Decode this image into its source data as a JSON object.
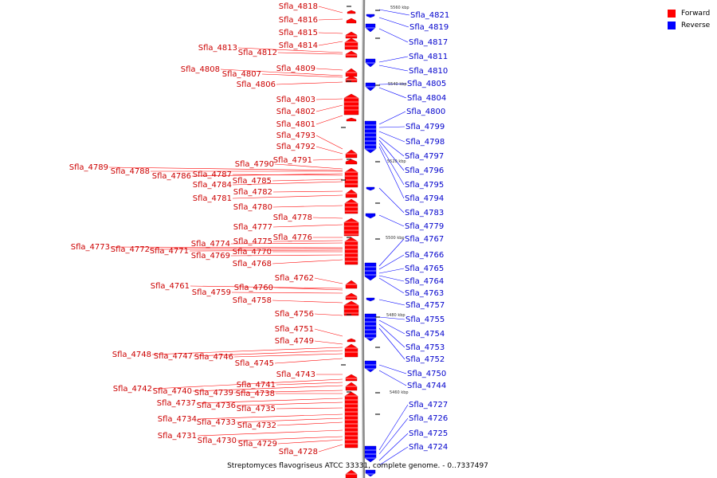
{
  "caption": "Streptomyces flavogriseus ATCC 33331, complete genome. - 0..7337497",
  "legend": [
    {
      "label": "Forward",
      "color": "#ff0000"
    },
    {
      "label": "Reverse",
      "color": "#0000ff"
    }
  ],
  "colors": {
    "forward": "#ff0000",
    "forward_label": "#cc0000",
    "reverse": "#0000ff",
    "reverse_label": "#0000cc",
    "backbone": "#888888"
  },
  "ticks": [
    "5560 kbp",
    "5540 kbp",
    "5520 kbp",
    "5500 kbp",
    "5480 kbp",
    "5460 kbp"
  ],
  "forward_genes": [
    "Sfla_4818",
    "Sfla_4816",
    "Sfla_4815",
    "Sfla_4814",
    "Sfla_4813",
    "Sfla_4812",
    "Sfla_4809",
    "Sfla_4808",
    "Sfla_4807",
    "Sfla_4806",
    "Sfla_4803",
    "Sfla_4802",
    "Sfla_4801",
    "Sfla_4793",
    "Sfla_4792",
    "Sfla_4791",
    "Sfla_4790",
    "Sfla_4789",
    "Sfla_4788",
    "Sfla_4786",
    "Sfla_4787",
    "Sfla_4785",
    "Sfla_4784",
    "Sfla_4782",
    "Sfla_4781",
    "Sfla_4780",
    "Sfla_4778",
    "Sfla_4777",
    "Sfla_4776",
    "Sfla_4775",
    "Sfla_4774",
    "Sfla_4773",
    "Sfla_4772",
    "Sfla_4771",
    "Sfla_4770",
    "Sfla_4769",
    "Sfla_4768",
    "Sfla_4762",
    "Sfla_4761",
    "Sfla_4760",
    "Sfla_4759",
    "Sfla_4758",
    "Sfla_4756",
    "Sfla_4751",
    "Sfla_4749",
    "Sfla_4748",
    "Sfla_4747",
    "Sfla_4746",
    "Sfla_4745",
    "Sfla_4743",
    "Sfla_4742",
    "Sfla_4741",
    "Sfla_4740",
    "Sfla_4739",
    "Sfla_4738",
    "Sfla_4737",
    "Sfla_4736",
    "Sfla_4735",
    "Sfla_4734",
    "Sfla_4733",
    "Sfla_4732",
    "Sfla_4731",
    "Sfla_4730",
    "Sfla_4729",
    "Sfla_4728"
  ],
  "reverse_genes": [
    "Sfla_4821",
    "Sfla_4819",
    "Sfla_4817",
    "Sfla_4811",
    "Sfla_4810",
    "Sfla_4805",
    "Sfla_4804",
    "Sfla_4800",
    "Sfla_4799",
    "Sfla_4798",
    "Sfla_4797",
    "Sfla_4796",
    "Sfla_4795",
    "Sfla_4794",
    "Sfla_4783",
    "Sfla_4779",
    "Sfla_4767",
    "Sfla_4766",
    "Sfla_4765",
    "Sfla_4764",
    "Sfla_4763",
    "Sfla_4757",
    "Sfla_4755",
    "Sfla_4754",
    "Sfla_4753",
    "Sfla_4752",
    "Sfla_4750",
    "Sfla_4744",
    "Sfla_4727",
    "Sfla_4726",
    "Sfla_4725",
    "Sfla_4724"
  ]
}
